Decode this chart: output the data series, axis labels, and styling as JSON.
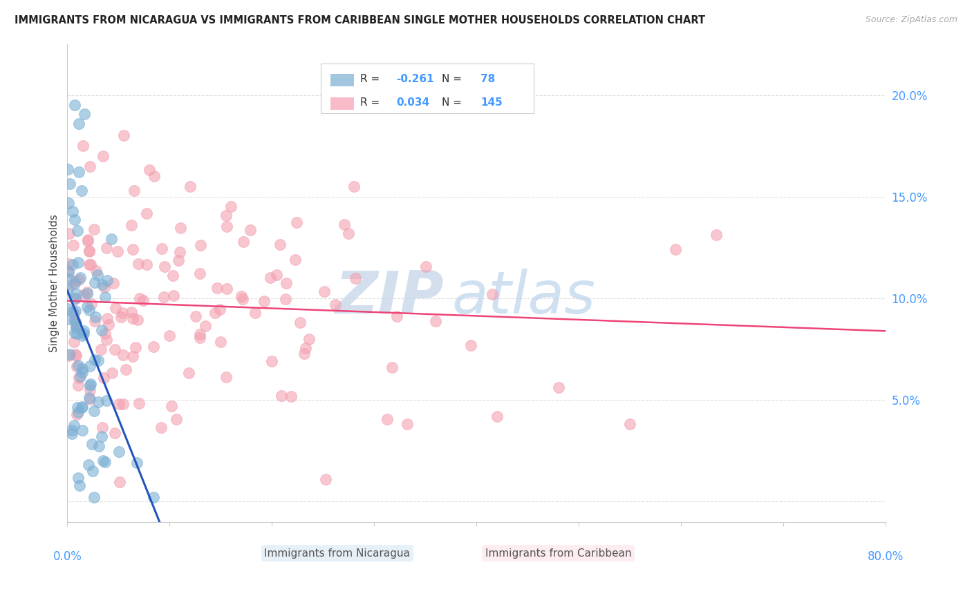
{
  "title": "IMMIGRANTS FROM NICARAGUA VS IMMIGRANTS FROM CARIBBEAN SINGLE MOTHER HOUSEHOLDS CORRELATION CHART",
  "source": "Source: ZipAtlas.com",
  "ylabel": "Single Mother Households",
  "y_ticks": [
    0.0,
    0.05,
    0.1,
    0.15,
    0.2
  ],
  "y_tick_labels": [
    "",
    "5.0%",
    "10.0%",
    "15.0%",
    "20.0%"
  ],
  "xlim": [
    0.0,
    0.8
  ],
  "ylim": [
    -0.01,
    0.225
  ],
  "color_nicaragua": "#7BAFD4",
  "color_caribbean": "#F4A0B0",
  "color_trendline_nicaragua": "#2255BB",
  "color_trendline_caribbean": "#EE4477",
  "color_dashed": "#BBBBBB",
  "background_color": "#FFFFFF",
  "tick_color": "#4499FF",
  "grid_color": "#DDDDDD"
}
